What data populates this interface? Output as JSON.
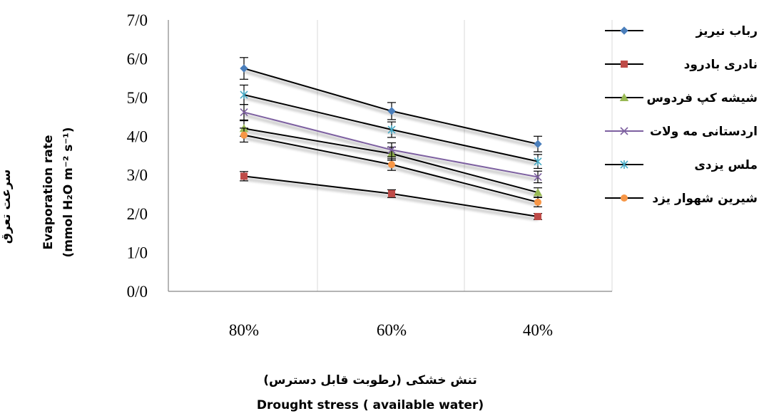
{
  "chart_data": {
    "type": "line",
    "categories": [
      "80%",
      "60%",
      "40%"
    ],
    "ylim": [
      0,
      7
    ],
    "y_ticks": [
      "0/0",
      "1/0",
      "2/0",
      "3/0",
      "4/0",
      "5/0",
      "6/0",
      "7/0"
    ],
    "grid": "vertical",
    "legend_position": "right",
    "ylabel_fa": "سرعت تعرق",
    "ylabel_en_1": "Evaporation rate",
    "ylabel_en_2": "(mmol H₂O m⁻² s⁻¹)",
    "xlabel_fa": "تنش خشکی (رطوبت قابل دسترس)",
    "xlabel_en": "Drought stress ( available water)",
    "series": [
      {
        "name": "رباب نیریز",
        "values": [
          5.75,
          4.65,
          3.8
        ],
        "errors": [
          0.28,
          0.22,
          0.2
        ],
        "color": "#4a7ebb",
        "marker": "diamond",
        "line_color": "#000000"
      },
      {
        "name": "نادری بادرود",
        "values": [
          2.97,
          2.52,
          1.93
        ],
        "errors": [
          0.12,
          0.1,
          0.08
        ],
        "color": "#be4b48",
        "marker": "square",
        "line_color": "#000000"
      },
      {
        "name": "شیشه کپ فردوس",
        "values": [
          4.2,
          3.55,
          2.55
        ],
        "errors": [
          0.2,
          0.17,
          0.12
        ],
        "color": "#98b954",
        "marker": "triangle",
        "line_color": "#000000"
      },
      {
        "name": "اردستانی مه ولات",
        "values": [
          4.62,
          3.65,
          2.95
        ],
        "errors": [
          0.2,
          0.18,
          0.15
        ],
        "color": "#7d60a0",
        "marker": "x",
        "line_color": "#7d60a0"
      },
      {
        "name": "ملس یزدی",
        "values": [
          5.07,
          4.17,
          3.35
        ],
        "errors": [
          0.25,
          0.2,
          0.18
        ],
        "color": "#46aac5",
        "marker": "star",
        "line_color": "#000000"
      },
      {
        "name": "شیرین شهوار یزد",
        "values": [
          4.03,
          3.27,
          2.3
        ],
        "errors": [
          0.18,
          0.15,
          0.12
        ],
        "color": "#f79646",
        "marker": "circle",
        "line_color": "#000000"
      }
    ]
  }
}
